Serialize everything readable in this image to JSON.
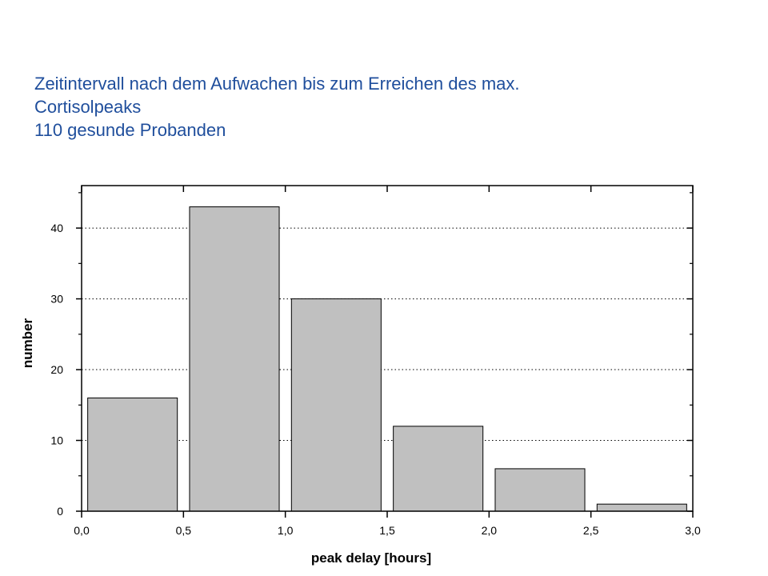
{
  "chart_data": {
    "type": "bar",
    "title": [
      "Zeitintervall nach dem Aufwachen bis zum Erreichen des max.",
      "Cortisolpeaks",
      "110 gesunde Probanden"
    ],
    "xlabel": "peak delay [hours]",
    "ylabel": "number",
    "bins": [
      [
        0.0,
        0.5
      ],
      [
        0.5,
        1.0
      ],
      [
        1.0,
        1.5
      ],
      [
        1.5,
        2.0
      ],
      [
        2.0,
        2.5
      ],
      [
        2.5,
        3.0
      ]
    ],
    "values": [
      16,
      43,
      30,
      12,
      6,
      1
    ],
    "xlim": [
      0.0,
      3.0
    ],
    "ylim": [
      0,
      46
    ],
    "xticks": [
      0.0,
      0.5,
      1.0,
      1.5,
      2.0,
      2.5,
      3.0
    ],
    "xtick_labels": [
      "0,0",
      "0,5",
      "1,0",
      "1,5",
      "2,0",
      "2,5",
      "3,0"
    ],
    "yticks": [
      0,
      10,
      20,
      30,
      40
    ],
    "ytick_labels": [
      "0",
      "10",
      "20",
      "30",
      "40"
    ],
    "grid": "horizontal dotted",
    "bar_color": "#c0c0c0",
    "title_color": "#1f4e9c"
  }
}
